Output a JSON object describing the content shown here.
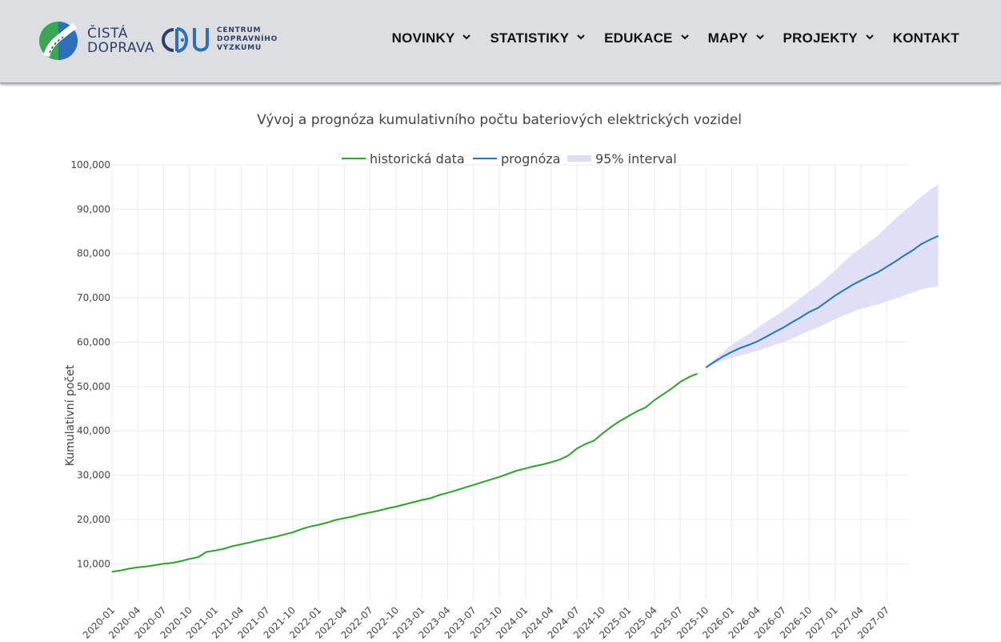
{
  "header": {
    "logo_line1": "ČISTÁ",
    "logo_line2": "DOPRAVA",
    "cdv_line1": "CENTRUM",
    "cdv_line2": "DOPRAVNÍHO",
    "cdv_line3": "VÝZKUMU"
  },
  "nav": [
    {
      "label": "NOVINKY",
      "dropdown": true
    },
    {
      "label": "STATISTIKY",
      "dropdown": true
    },
    {
      "label": "EDUKACE",
      "dropdown": true
    },
    {
      "label": "MAPY",
      "dropdown": true
    },
    {
      "label": "PROJEKTY",
      "dropdown": true
    },
    {
      "label": "KONTAKT",
      "dropdown": false
    }
  ],
  "colors": {
    "header_bg": "#dcdee2",
    "historical": "#2ca02c",
    "forecast": "#1f77b4",
    "interval": "#dcdcf5",
    "logo_green": "#3aa655",
    "logo_blue": "#2d6fb8"
  },
  "chart_data": {
    "type": "line",
    "title": "Vývoj a prognóza kumulativního počtu bateriových elektrických vozidel",
    "ylabel": "Kumulativní počet",
    "xlabel": "",
    "ylim": [
      5000,
      100000
    ],
    "x_tick_labels": [
      "2020-01",
      "2020-04",
      "2020-07",
      "2020-10",
      "2021-01",
      "2021-04",
      "2021-07",
      "2021-10",
      "2022-01",
      "2022-04",
      "2022-07",
      "2022-10",
      "2023-01",
      "2023-04",
      "2023-07",
      "2023-10",
      "2024-01",
      "2024-04",
      "2024-07",
      "2024-10",
      "2025-01",
      "2025-04",
      "2025-07",
      "2025-10",
      "2026-01",
      "2026-04",
      "2026-07",
      "2026-10",
      "2027-01",
      "2027-04",
      "2027-07"
    ],
    "y_tick_labels": [
      "10,000",
      "20,000",
      "30,000",
      "40,000",
      "50,000",
      "60,000",
      "70,000",
      "80,000",
      "90,000",
      "100,000"
    ],
    "y_ticks": [
      10000,
      20000,
      30000,
      40000,
      50000,
      60000,
      70000,
      80000,
      90000,
      100000
    ],
    "legend": [
      "historická data",
      "prognóza",
      "95% interval"
    ],
    "legend_position": "top-center",
    "grid": true,
    "series": [
      {
        "name": "historická data",
        "x_start": "2020-01",
        "values": [
          8200,
          8500,
          8900,
          9200,
          9400,
          9700,
          10000,
          10200,
          10600,
          11100,
          11500,
          12700,
          13000,
          13400,
          14000,
          14400,
          14800,
          15300,
          15700,
          16100,
          16600,
          17100,
          17800,
          18400,
          18800,
          19300,
          19900,
          20300,
          20700,
          21200,
          21600,
          22000,
          22500,
          22900,
          23400,
          23900,
          24400,
          24800,
          25500,
          26000,
          26600,
          27200,
          27800,
          28400,
          29000,
          29600,
          30300,
          31000,
          31500,
          32000,
          32400,
          32900,
          33500,
          34400,
          36000,
          37000,
          37800,
          39400,
          40900,
          42200,
          43300,
          44400,
          45300,
          46900,
          48200,
          49500,
          51000,
          52100,
          52900
        ]
      },
      {
        "name": "prognóza",
        "x_start": "2025-10",
        "values": [
          54300,
          55600,
          56800,
          57800,
          58700,
          59400,
          60200,
          61200,
          62300,
          63300,
          64500,
          65600,
          66800,
          67700,
          69100,
          70500,
          71700,
          72900,
          73900,
          74900,
          75800,
          77000,
          78200,
          79500,
          80700,
          82100,
          83100,
          84000
        ],
        "lower": [
          54100,
          55100,
          55900,
          56500,
          57000,
          57500,
          58000,
          58700,
          59400,
          60000,
          60800,
          61700,
          62600,
          63300,
          64200,
          65200,
          66000,
          66800,
          67500,
          68000,
          68500,
          69200,
          69800,
          70500,
          71200,
          71900,
          72300,
          72600
        ],
        "upper": [
          54500,
          56200,
          57800,
          59400,
          60700,
          61800,
          63200,
          64600,
          65800,
          67100,
          68500,
          70000,
          71500,
          72800,
          74500,
          76200,
          78000,
          79800,
          81200,
          82700,
          84100,
          86000,
          87800,
          89500,
          91100,
          92800,
          94300,
          95600
        ]
      }
    ]
  }
}
